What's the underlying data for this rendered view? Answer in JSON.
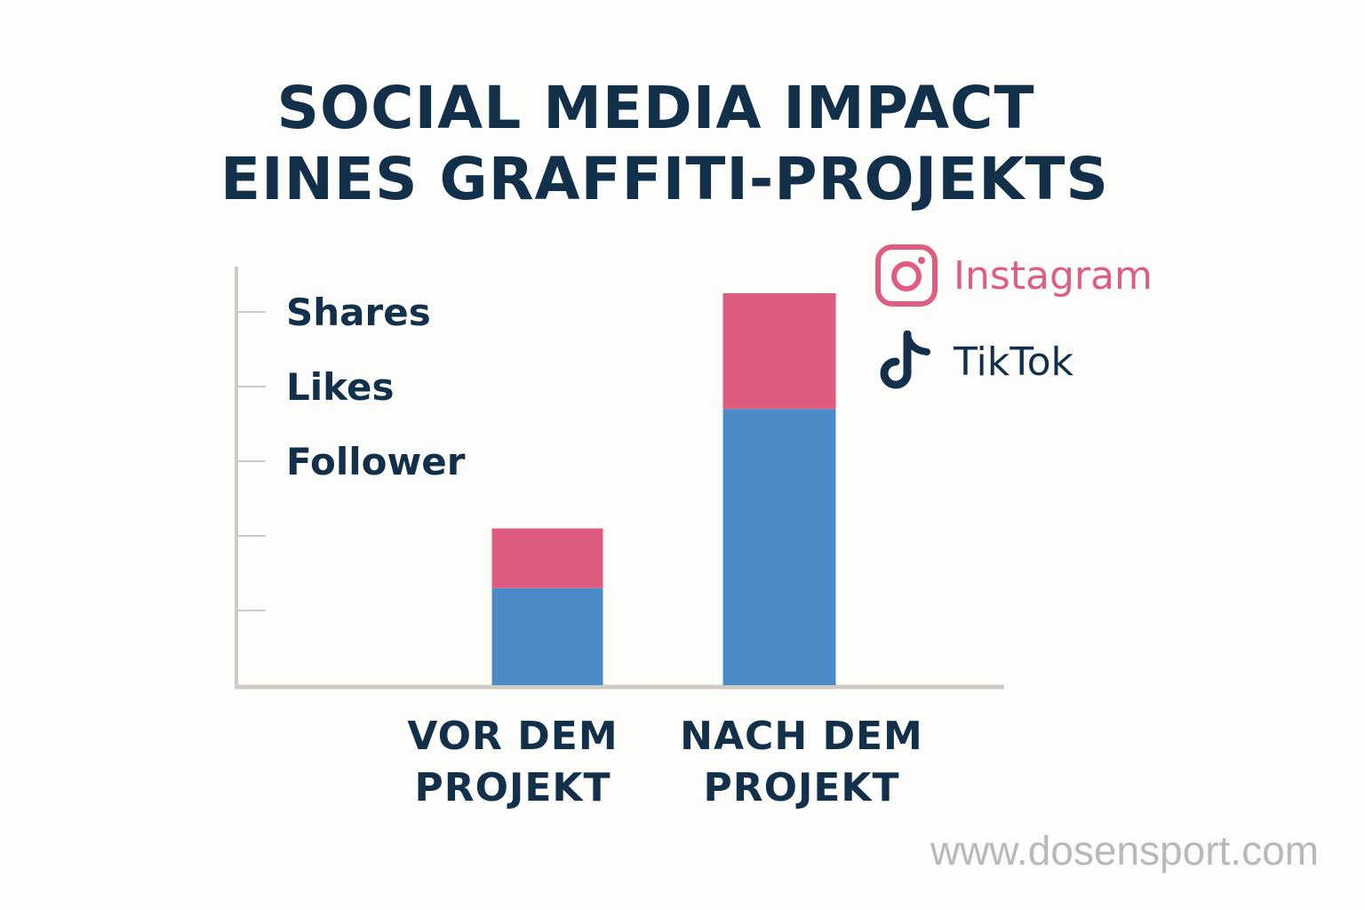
{
  "title": {
    "line1": "SOCIAL MEDIA IMPACT",
    "line2": "EINES GRAFFITI-PROJEKTS"
  },
  "footer": "www.dosensport.com",
  "colors": {
    "instagram": "#dd5b7f",
    "tiktok": "#4b8bc8",
    "text": "#13304a",
    "axis": "#cfcac3"
  },
  "chart_data": {
    "type": "bar",
    "stacked": true,
    "categories": [
      "VOR DEM\nPROJEKT",
      "NACH DEM\nPROJEKT"
    ],
    "series": [
      {
        "name": "TikTok",
        "values": [
          1.3,
          3.7
        ],
        "color": "#4b8bc8",
        "icon": "tiktok-icon"
      },
      {
        "name": "Instagram",
        "values": [
          0.8,
          1.55
        ],
        "color": "#dd5b7f",
        "icon": "instagram-icon"
      }
    ],
    "y_tick_labels": [
      "Follower",
      "Likes",
      "Shares"
    ],
    "y_ticks": [
      1,
      2,
      3,
      4,
      5
    ],
    "ylim": [
      0,
      5.2
    ],
    "legend_position": "top-right",
    "grid": false
  }
}
